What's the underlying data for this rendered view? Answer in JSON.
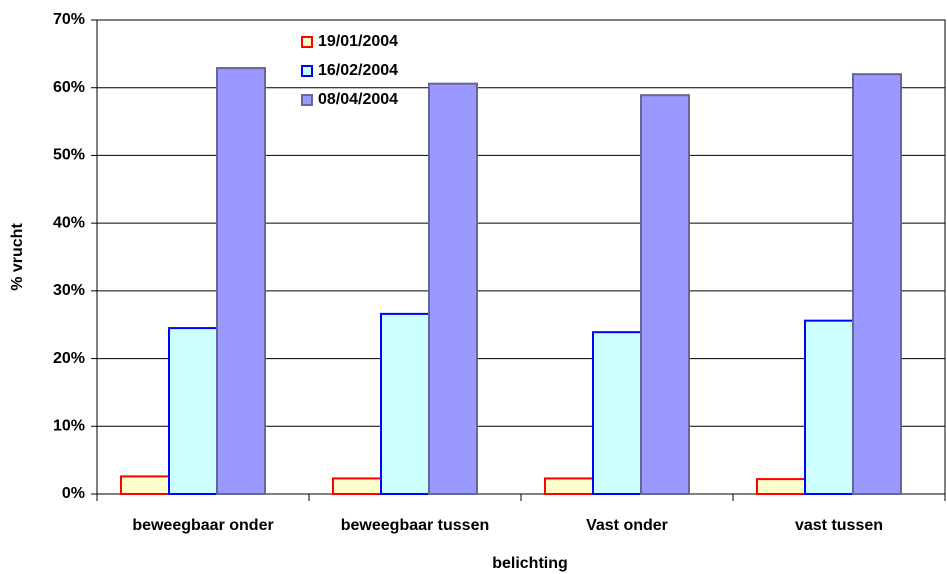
{
  "chart_data": {
    "type": "bar",
    "x_label": "belichting",
    "y_label": "% vrucht",
    "categories": [
      "beweegbaar onder",
      "beweegbaar tussen",
      "Vast onder",
      "vast tussen"
    ],
    "series": [
      {
        "name": "19/01/2004",
        "color": "#ffffcc",
        "edgecolor": "#ff0000",
        "values": [
          2.6,
          2.3,
          2.3,
          2.2
        ]
      },
      {
        "name": "16/02/2004",
        "color": "#ccffff",
        "edgecolor": "#0000ff",
        "values": [
          24.5,
          26.6,
          23.9,
          25.6
        ]
      },
      {
        "name": "08/04/2004",
        "color": "#9999ff",
        "edgecolor": "#666699",
        "values": [
          62.9,
          60.6,
          58.9,
          62.0
        ]
      }
    ],
    "ylim": [
      0,
      70
    ],
    "yticks": [
      {
        "value": 0,
        "label": "0%"
      },
      {
        "value": 10,
        "label": "10%"
      },
      {
        "value": 20,
        "label": "20%"
      },
      {
        "value": 30,
        "label": "30%"
      },
      {
        "value": 40,
        "label": "40%"
      },
      {
        "value": 50,
        "label": "50%"
      },
      {
        "value": 60,
        "label": "60%"
      },
      {
        "value": 70,
        "label": "70%"
      }
    ],
    "grid": true,
    "legend": "upper left"
  }
}
